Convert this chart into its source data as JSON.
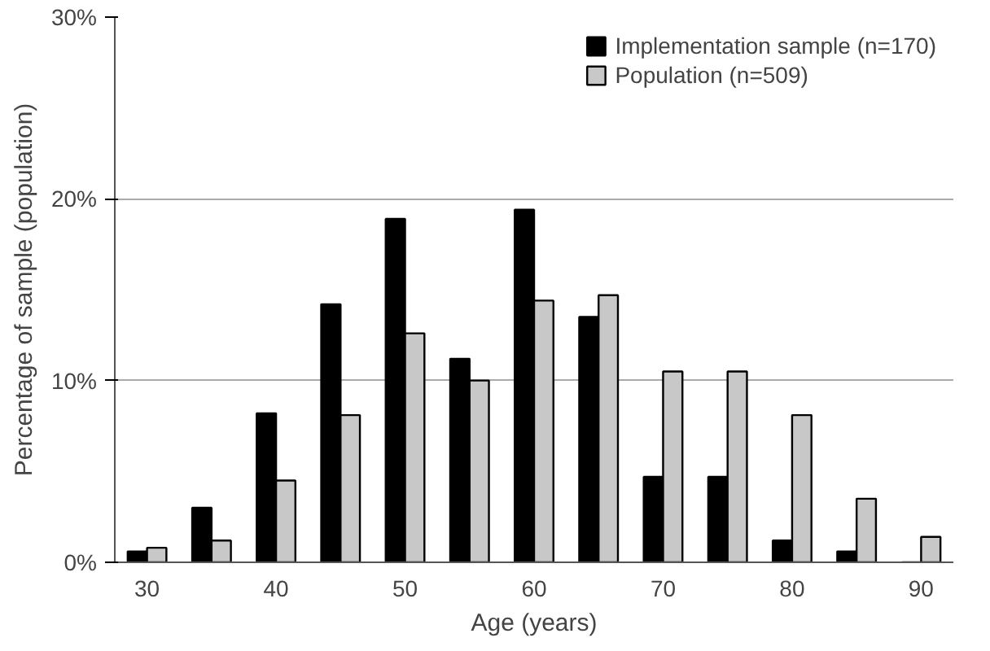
{
  "chart_data": {
    "type": "bar",
    "xlabel": "Age (years)",
    "ylabel": "Percentage of sample (population)",
    "categories": [
      "30",
      null,
      "40",
      null,
      "50",
      null,
      "60",
      null,
      "70",
      null,
      "80",
      null,
      "90"
    ],
    "series": [
      {
        "name": "Implementation sample (n=170)",
        "color": "#000000",
        "values": [
          0.6,
          3.0,
          8.2,
          14.2,
          18.9,
          11.2,
          19.4,
          13.5,
          4.7,
          4.7,
          1.2,
          0.6,
          0
        ]
      },
      {
        "name": "Population (n=509)",
        "color": "#c8c8c8",
        "values": [
          0.8,
          1.2,
          4.5,
          8.1,
          12.6,
          10.0,
          14.4,
          14.7,
          10.5,
          10.5,
          8.1,
          3.5,
          1.4
        ]
      }
    ],
    "ylim": [
      0,
      30
    ],
    "yticks": [
      {
        "value": 0,
        "label": "0%"
      },
      {
        "value": 10,
        "label": "10%"
      },
      {
        "value": 20,
        "label": "20%"
      },
      {
        "value": 30,
        "label": "30%"
      }
    ],
    "grid": "y",
    "legend": "top right"
  }
}
